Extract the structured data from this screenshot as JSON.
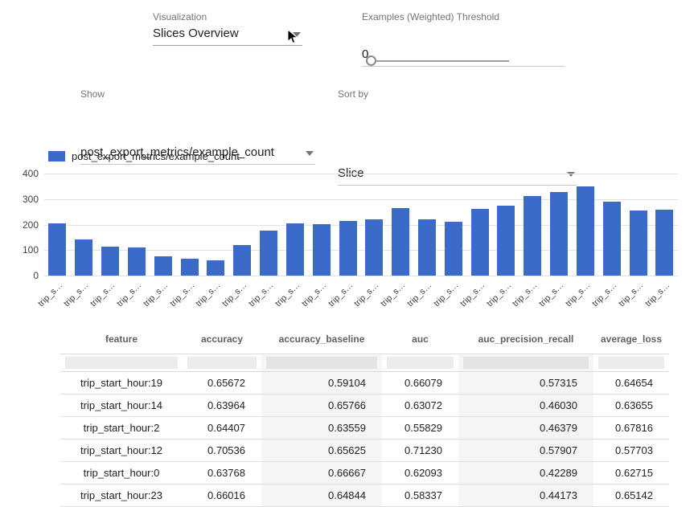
{
  "controls": {
    "visualization": {
      "label": "Visualization",
      "value": "Slices Overview"
    },
    "threshold": {
      "label": "Examples (Weighted) Threshold",
      "value": "0"
    },
    "show": {
      "label": "Show",
      "value": "post_export_metrics/example_count"
    },
    "sort": {
      "label": "Sort by",
      "value": "Slice"
    }
  },
  "chart_data": {
    "type": "bar",
    "legend": "post_export_metrics/example_count",
    "categories": [
      "trip_s…",
      "trip_s…",
      "trip_s…",
      "trip_s…",
      "trip_s…",
      "trip_s…",
      "trip_s…",
      "trip_s…",
      "trip_s…",
      "trip_s…",
      "trip_s…",
      "trip_s…",
      "trip_s…",
      "trip_s…",
      "trip_s…",
      "trip_s…",
      "trip_s…",
      "trip_s…",
      "trip_s…",
      "trip_s…",
      "trip_s…",
      "trip_s…",
      "trip_s…",
      "trip_s…"
    ],
    "values": [
      206,
      143,
      114,
      111,
      76,
      67,
      60,
      121,
      178,
      206,
      203,
      213,
      222,
      264,
      219,
      210,
      260,
      273,
      311,
      327,
      349,
      289,
      254,
      257
    ],
    "xlabel": "",
    "ylabel": "",
    "ylim": [
      0,
      400
    ],
    "yticks": [
      0,
      100,
      200,
      300,
      400
    ],
    "bar_color": "#3b6bc9",
    "grid": true,
    "legend_position": "top-left"
  },
  "table": {
    "headers": [
      "feature",
      "accuracy",
      "accuracy_baseline",
      "auc",
      "auc_precision_recall",
      "average_loss"
    ],
    "rows": [
      [
        "trip_start_hour:19",
        "0.65672",
        "0.59104",
        "0.66079",
        "0.57315",
        "0.64654"
      ],
      [
        "trip_start_hour:14",
        "0.63964",
        "0.65766",
        "0.63072",
        "0.46030",
        "0.63655"
      ],
      [
        "trip_start_hour:2",
        "0.64407",
        "0.63559",
        "0.55829",
        "0.46379",
        "0.67816"
      ],
      [
        "trip_start_hour:12",
        "0.70536",
        "0.65625",
        "0.71230",
        "0.57907",
        "0.57703"
      ],
      [
        "trip_start_hour:0",
        "0.63768",
        "0.66667",
        "0.62093",
        "0.42289",
        "0.62715"
      ],
      [
        "trip_start_hour:23",
        "0.66016",
        "0.64844",
        "0.58337",
        "0.44173",
        "0.65142"
      ]
    ]
  }
}
